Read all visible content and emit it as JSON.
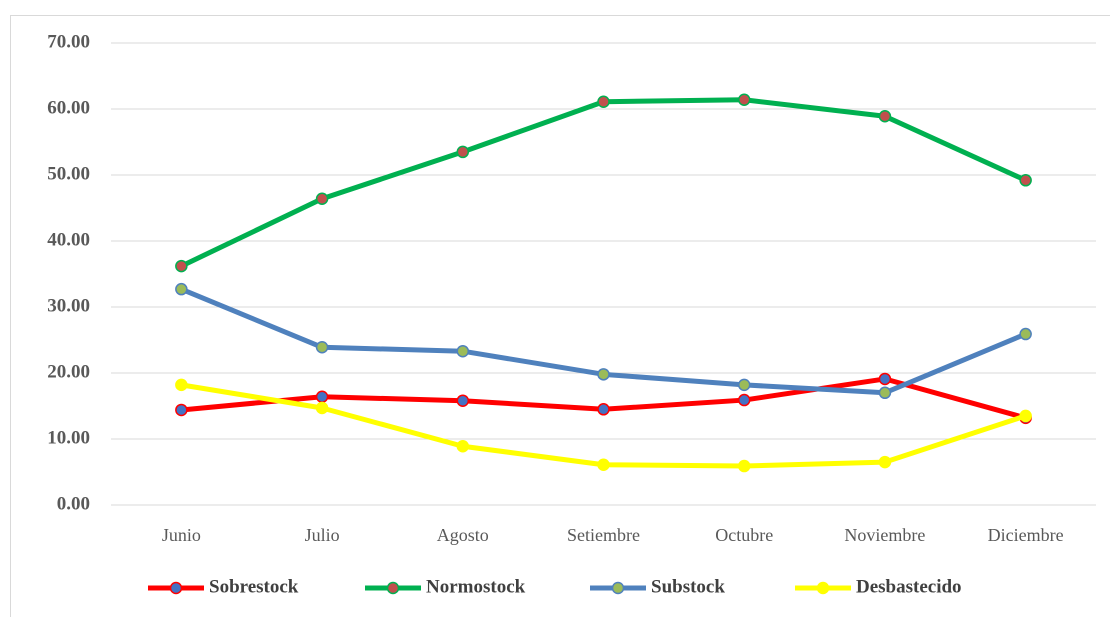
{
  "chart_data": {
    "type": "line",
    "categories": [
      "Junio",
      "Julio",
      "Agosto",
      "Setiembre",
      "Octubre",
      "Noviembre",
      "Diciembre"
    ],
    "series": [
      {
        "name": "Sobrestock",
        "color": "#ff0000",
        "marker_color": "#4472c4",
        "values": [
          14.4,
          16.4,
          15.8,
          14.5,
          15.9,
          19.1,
          13.2
        ]
      },
      {
        "name": "Normostock",
        "color": "#00b050",
        "marker_color": "#c0504d",
        "values": [
          36.2,
          46.4,
          53.5,
          61.1,
          61.4,
          58.9,
          49.2
        ]
      },
      {
        "name": "Substock",
        "color": "#4f81bd",
        "marker_color": "#9bbb59",
        "values": [
          32.7,
          23.9,
          23.3,
          19.8,
          18.2,
          17.0,
          25.9
        ]
      },
      {
        "name": "Desbastecido",
        "color": "#ffff00",
        "marker_color": "#ffff00",
        "values": [
          18.2,
          14.7,
          8.9,
          6.1,
          5.9,
          6.5,
          13.5
        ]
      }
    ],
    "ylim": [
      0,
      70
    ],
    "yticks": [
      {
        "value": 0,
        "label": "0.00"
      },
      {
        "value": 10,
        "label": "10.00"
      },
      {
        "value": 20,
        "label": "20.00"
      },
      {
        "value": 30,
        "label": "30.00"
      },
      {
        "value": 40,
        "label": "40.00"
      },
      {
        "value": 50,
        "label": "50.00"
      },
      {
        "value": 60,
        "label": "60.00"
      },
      {
        "value": 70,
        "label": "70.00"
      }
    ],
    "grid": true,
    "legend": "bottom"
  }
}
